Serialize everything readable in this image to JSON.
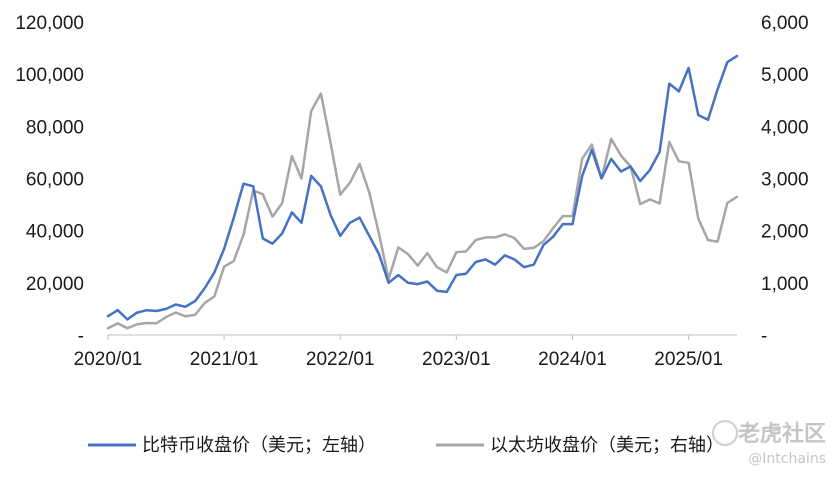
{
  "chart_data": {
    "type": "line",
    "title": "",
    "xlabel": "",
    "ylabel_left": "",
    "ylabel_right": "",
    "x_ticks": [
      "2020/01",
      "2021/01",
      "2022/01",
      "2023/01",
      "2024/01",
      "2025/01"
    ],
    "y_left_ticks": [
      "-",
      "20,000",
      "40,000",
      "60,000",
      "80,000",
      "100,000",
      "120,000"
    ],
    "y_right_ticks": [
      "-",
      "1,000",
      "2,000",
      "3,000",
      "4,000",
      "5,000",
      "6,000"
    ],
    "ylim_left": [
      0,
      120000
    ],
    "ylim_right": [
      0,
      6000
    ],
    "xlim": [
      "2020-01",
      "2025-06"
    ],
    "grid": false,
    "legend_position": "bottom",
    "series": [
      {
        "name": "比特币收盘价（美元；左轴）",
        "axis": "left",
        "color": "#4472C4",
        "points": [
          [
            "2020-01",
            7200
          ],
          [
            "2020-02",
            9500
          ],
          [
            "2020-03",
            6000
          ],
          [
            "2020-04",
            8600
          ],
          [
            "2020-05",
            9500
          ],
          [
            "2020-06",
            9200
          ],
          [
            "2020-07",
            10000
          ],
          [
            "2020-08",
            11700
          ],
          [
            "2020-09",
            10800
          ],
          [
            "2020-10",
            13000
          ],
          [
            "2020-11",
            18000
          ],
          [
            "2020-12",
            24000
          ],
          [
            "2021-01",
            33000
          ],
          [
            "2021-02",
            45000
          ],
          [
            "2021-03",
            58000
          ],
          [
            "2021-04",
            57000
          ],
          [
            "2021-05",
            37000
          ],
          [
            "2021-06",
            35000
          ],
          [
            "2021-07",
            39000
          ],
          [
            "2021-08",
            47000
          ],
          [
            "2021-09",
            43000
          ],
          [
            "2021-10",
            61000
          ],
          [
            "2021-11",
            57000
          ],
          [
            "2021-12",
            46000
          ],
          [
            "2022-01",
            38000
          ],
          [
            "2022-02",
            43000
          ],
          [
            "2022-03",
            45000
          ],
          [
            "2022-04",
            38000
          ],
          [
            "2022-05",
            31000
          ],
          [
            "2022-06",
            20000
          ],
          [
            "2022-07",
            23000
          ],
          [
            "2022-08",
            20000
          ],
          [
            "2022-09",
            19500
          ],
          [
            "2022-10",
            20500
          ],
          [
            "2022-11",
            17000
          ],
          [
            "2022-12",
            16500
          ],
          [
            "2023-01",
            23000
          ],
          [
            "2023-02",
            23500
          ],
          [
            "2023-03",
            28000
          ],
          [
            "2023-04",
            29000
          ],
          [
            "2023-05",
            27000
          ],
          [
            "2023-06",
            30500
          ],
          [
            "2023-07",
            29000
          ],
          [
            "2023-08",
            26000
          ],
          [
            "2023-09",
            27000
          ],
          [
            "2023-10",
            34500
          ],
          [
            "2023-11",
            37700
          ],
          [
            "2023-12",
            42500
          ],
          [
            "2024-01",
            42500
          ],
          [
            "2024-02",
            61000
          ],
          [
            "2024-03",
            71000
          ],
          [
            "2024-04",
            60000
          ],
          [
            "2024-05",
            67500
          ],
          [
            "2024-06",
            62700
          ],
          [
            "2024-07",
            64600
          ],
          [
            "2024-08",
            59000
          ],
          [
            "2024-09",
            63300
          ],
          [
            "2024-10",
            70200
          ],
          [
            "2024-11",
            96400
          ],
          [
            "2024-12",
            93400
          ],
          [
            "2025-01",
            102400
          ],
          [
            "2025-02",
            84300
          ],
          [
            "2025-03",
            82500
          ],
          [
            "2025-04",
            94200
          ],
          [
            "2025-05",
            104600
          ],
          [
            "2025-06",
            107000
          ]
        ]
      },
      {
        "name": "以太坊收盘价（美元；右轴）",
        "axis": "right",
        "color": "#A6A6A6",
        "points": [
          [
            "2020-01",
            130
          ],
          [
            "2020-02",
            225
          ],
          [
            "2020-03",
            130
          ],
          [
            "2020-04",
            205
          ],
          [
            "2020-05",
            230
          ],
          [
            "2020-06",
            225
          ],
          [
            "2020-07",
            345
          ],
          [
            "2020-08",
            430
          ],
          [
            "2020-09",
            360
          ],
          [
            "2020-10",
            385
          ],
          [
            "2020-11",
            615
          ],
          [
            "2020-12",
            740
          ],
          [
            "2021-01",
            1310
          ],
          [
            "2021-02",
            1420
          ],
          [
            "2021-03",
            1920
          ],
          [
            "2021-04",
            2770
          ],
          [
            "2021-05",
            2700
          ],
          [
            "2021-06",
            2270
          ],
          [
            "2021-07",
            2530
          ],
          [
            "2021-08",
            3430
          ],
          [
            "2021-09",
            3000
          ],
          [
            "2021-10",
            4290
          ],
          [
            "2021-11",
            4630
          ],
          [
            "2021-12",
            3680
          ],
          [
            "2022-01",
            2690
          ],
          [
            "2022-02",
            2920
          ],
          [
            "2022-03",
            3280
          ],
          [
            "2022-04",
            2730
          ],
          [
            "2022-05",
            1940
          ],
          [
            "2022-06",
            1070
          ],
          [
            "2022-07",
            1680
          ],
          [
            "2022-08",
            1550
          ],
          [
            "2022-09",
            1330
          ],
          [
            "2022-10",
            1570
          ],
          [
            "2022-11",
            1300
          ],
          [
            "2022-12",
            1200
          ],
          [
            "2023-01",
            1590
          ],
          [
            "2023-02",
            1600
          ],
          [
            "2023-03",
            1820
          ],
          [
            "2023-04",
            1870
          ],
          [
            "2023-05",
            1870
          ],
          [
            "2023-06",
            1930
          ],
          [
            "2023-07",
            1860
          ],
          [
            "2023-08",
            1650
          ],
          [
            "2023-09",
            1670
          ],
          [
            "2023-10",
            1800
          ],
          [
            "2023-11",
            2050
          ],
          [
            "2023-12",
            2280
          ],
          [
            "2024-01",
            2280
          ],
          [
            "2024-02",
            3380
          ],
          [
            "2024-03",
            3650
          ],
          [
            "2024-04",
            3010
          ],
          [
            "2024-05",
            3760
          ],
          [
            "2024-06",
            3440
          ],
          [
            "2024-07",
            3230
          ],
          [
            "2024-08",
            2510
          ],
          [
            "2024-09",
            2600
          ],
          [
            "2024-10",
            2520
          ],
          [
            "2024-11",
            3700
          ],
          [
            "2024-12",
            3330
          ],
          [
            "2025-01",
            3300
          ],
          [
            "2025-02",
            2230
          ],
          [
            "2025-03",
            1820
          ],
          [
            "2025-04",
            1790
          ],
          [
            "2025-05",
            2530
          ],
          [
            "2025-06",
            2650
          ]
        ]
      }
    ]
  },
  "watermark": {
    "brand": "老虎社区",
    "handle": "@Intchains"
  }
}
